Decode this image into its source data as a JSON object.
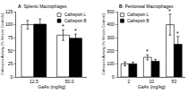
{
  "chart_data": [
    {
      "type": "bar",
      "panel": "A",
      "title": "Splenic Macrophages",
      "x_label": "GaAs (mg/kg)",
      "y_label": "Cathepsin Activity (% Vehicle Controls)",
      "categories": [
        "12.5",
        "50.0"
      ],
      "series": [
        {
          "name": "Cathepsin L",
          "color": "#ffffff",
          "values": [
            100,
            80
          ],
          "errors": [
            8,
            10
          ]
        },
        {
          "name": "Cathepsin B",
          "color": "#000000",
          "values": [
            101,
            74
          ],
          "errors": [
            10,
            8
          ]
        }
      ],
      "ylim": [
        0,
        125
      ],
      "yticks": [
        0,
        25,
        50,
        75,
        100,
        125
      ],
      "legend": "upper right",
      "annotations": [
        {
          "text": "*",
          "category": "50.0",
          "series": "Cathepsin L"
        },
        {
          "text": "*",
          "category": "50.0",
          "series": "Cathepsin B"
        }
      ]
    },
    {
      "type": "bar",
      "panel": "B",
      "title": "Peritoneal Macrophages",
      "x_label": "GaAs (mg/kg)",
      "y_label": "Cathepsin Activity (% Vehicle Controls)",
      "categories": [
        "2",
        "10",
        "50"
      ],
      "series": [
        {
          "name": "Cathepsin L",
          "color": "#ffffff",
          "values": [
            100,
            150,
            400
          ],
          "errors": [
            15,
            20,
            80
          ]
        },
        {
          "name": "Cathepsin B",
          "color": "#000000",
          "values": [
            100,
            120,
            250
          ],
          "errors": [
            12,
            15,
            60
          ]
        }
      ],
      "ylim": [
        0,
        500
      ],
      "yticks": [
        0,
        100,
        200,
        300,
        400,
        500
      ],
      "legend": "upper left",
      "annotations": [
        {
          "text": "*",
          "category": "10",
          "series": "Cathepsin L"
        },
        {
          "text": "*",
          "category": "50",
          "series": "Cathepsin L"
        },
        {
          "text": "*",
          "category": "50",
          "series": "Cathepsin B"
        }
      ]
    }
  ]
}
